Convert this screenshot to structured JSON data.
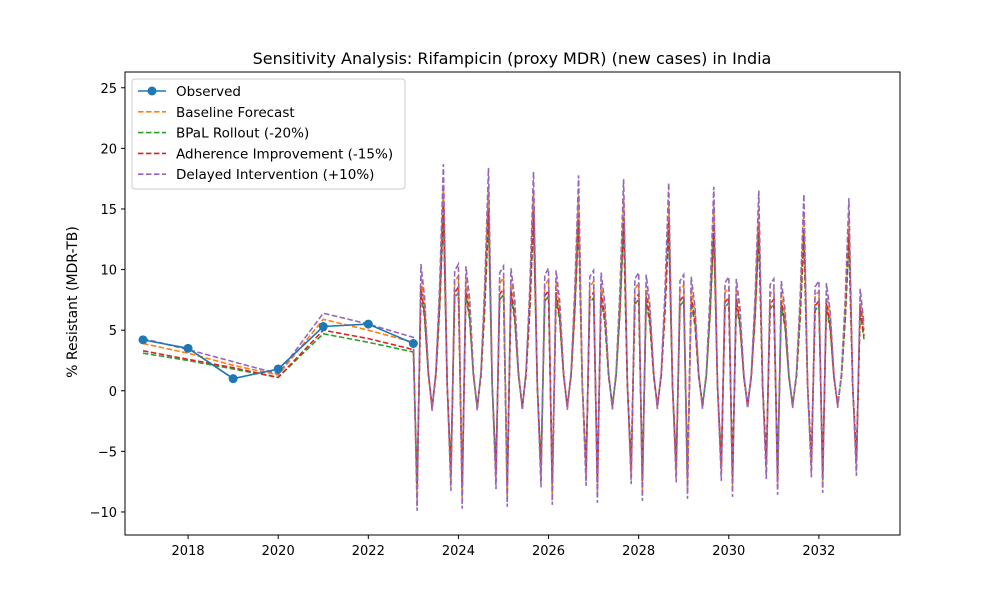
{
  "chart_data": {
    "type": "line",
    "title": "Sensitivity Analysis: Rifampicin (proxy MDR) (new cases) in India",
    "xlabel": "",
    "ylabel": "% Resistant (MDR-TB)",
    "xlim": [
      2016.6,
      2033.8
    ],
    "ylim": [
      -11.9,
      26.3
    ],
    "xticks": [
      2018,
      2020,
      2022,
      2024,
      2026,
      2028,
      2030,
      2032
    ],
    "yticks": [
      -10,
      -5,
      0,
      5,
      10,
      15,
      20,
      25
    ],
    "grid": false,
    "legend_position": "top-left",
    "observed": {
      "name": "Observed",
      "color": "#1f77b4",
      "x": [
        2017,
        2018,
        2019,
        2020,
        2021,
        2022,
        2023
      ],
      "y": [
        4.2,
        3.5,
        1.0,
        1.8,
        5.3,
        5.5,
        3.9
      ]
    },
    "scenarios": [
      {
        "name": "Baseline Forecast",
        "color": "#ff7f0e",
        "scale": 1.0,
        "hist": [
          3.9,
          3.1,
          2.1,
          1.3,
          5.9,
          5.0,
          4.0
        ]
      },
      {
        "name": "BPaL Rollout (-20%)",
        "color": "#2ca02c",
        "scale": 0.85,
        "hist": [
          3.1,
          2.5,
          1.8,
          1.1,
          4.7,
          4.0,
          3.2
        ]
      },
      {
        "name": "Adherence Improvement (-15%)",
        "color": "#d62728",
        "scale": 0.9,
        "hist": [
          3.3,
          2.6,
          1.9,
          1.1,
          5.0,
          4.3,
          3.4
        ]
      },
      {
        "name": "Delayed Intervention (+10%)",
        "color": "#9467bd",
        "scale": 1.1,
        "hist": [
          4.3,
          3.4,
          2.4,
          1.4,
          6.4,
          5.5,
          4.4
        ]
      }
    ],
    "forecast_pattern": [
      -9.0,
      9.5,
      7.0,
      1.5,
      -1.5,
      1.5,
      8.0,
      17.0,
      0.5,
      -7.5,
      9.0,
      9.5,
      2.5,
      -1.0,
      -1.5,
      0.5,
      7.0,
      16.5
    ],
    "forecast_growth": 0.85,
    "forecast_end": 5.0
  }
}
